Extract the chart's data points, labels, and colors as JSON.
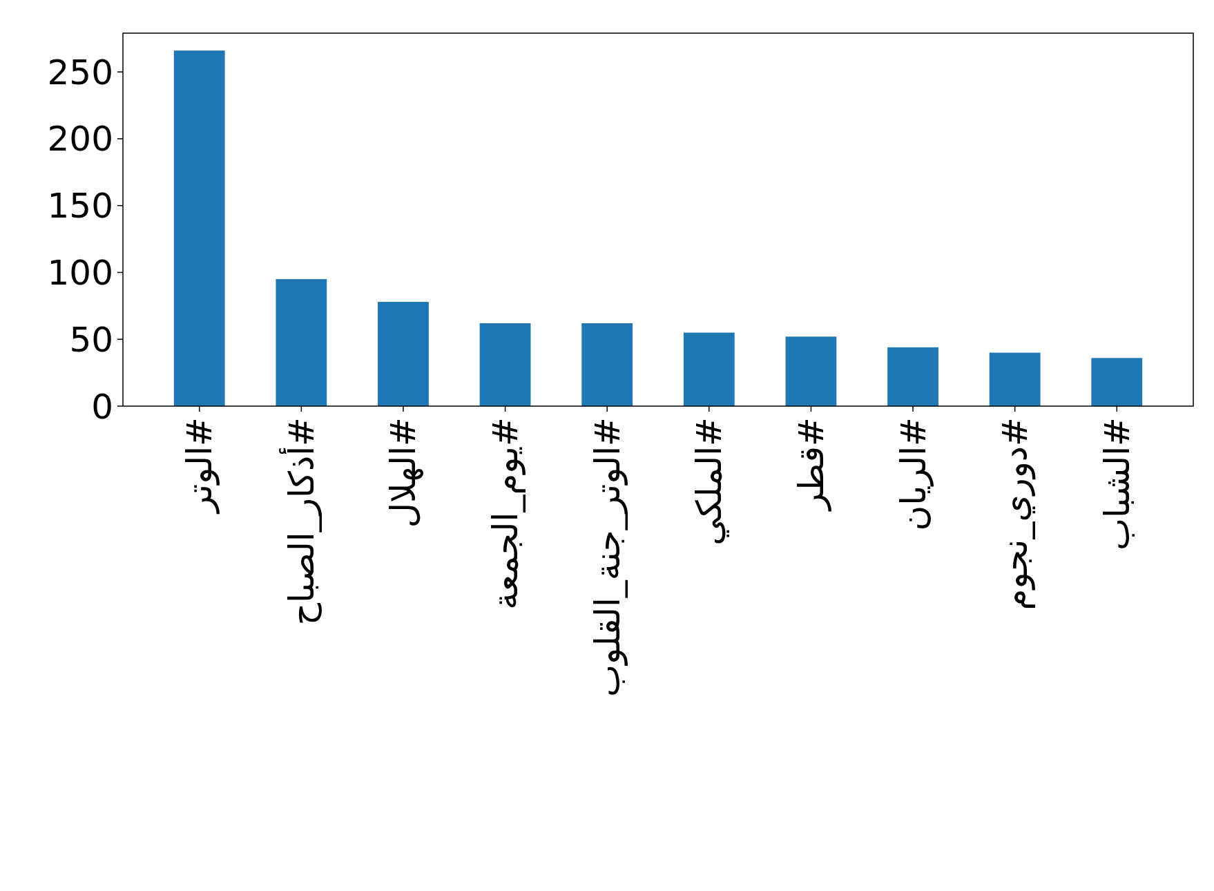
{
  "chart_data": {
    "type": "bar",
    "categories": [
      "#الوتر",
      "#أذكار_الصباح",
      "#الهلال",
      "#يوم_الجمعة",
      "#الوتر_جنة_القلوب",
      "#الملكي",
      "#قطر",
      "#الريان",
      "#دوري_نجوم",
      "#الشباب"
    ],
    "values": [
      266,
      95,
      78,
      62,
      62,
      55,
      52,
      44,
      40,
      36
    ],
    "color": "#1f77b4",
    "ylim": [
      0,
      279
    ],
    "yticks": [
      0,
      50,
      100,
      150,
      200,
      250
    ],
    "grid": false
  }
}
